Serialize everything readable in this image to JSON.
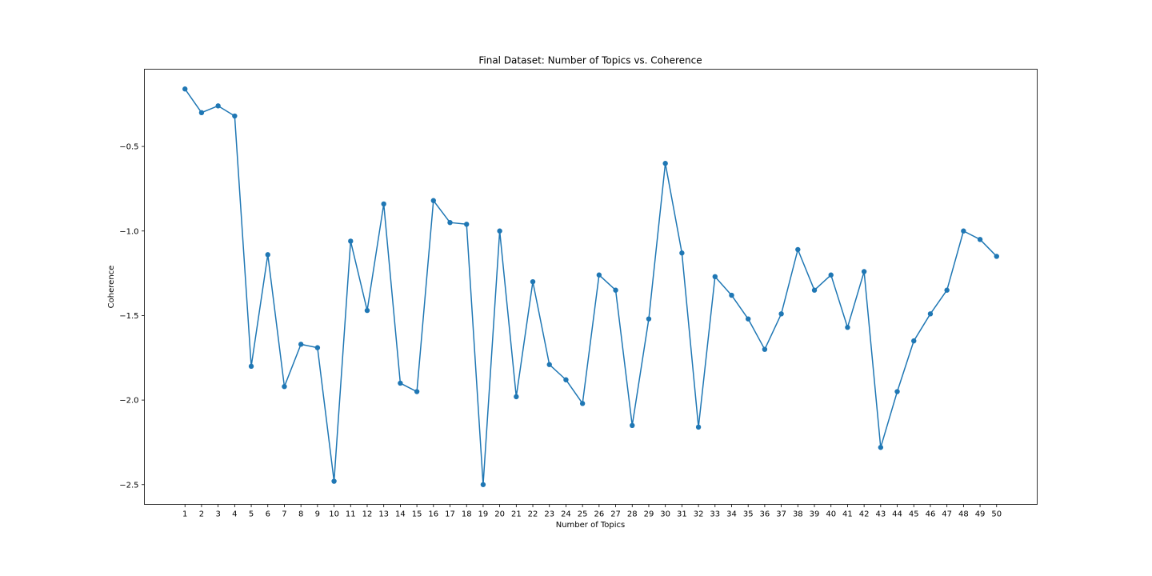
{
  "chart_data": {
    "type": "line",
    "title": "Final Dataset: Number of Topics vs. Coherence",
    "xlabel": "Number of Topics",
    "ylabel": "Coherence",
    "x": [
      1,
      2,
      3,
      4,
      5,
      6,
      7,
      8,
      9,
      10,
      11,
      12,
      13,
      14,
      15,
      16,
      17,
      18,
      19,
      20,
      21,
      22,
      23,
      24,
      25,
      26,
      27,
      28,
      29,
      30,
      31,
      32,
      33,
      34,
      35,
      36,
      37,
      38,
      39,
      40,
      41,
      42,
      43,
      44,
      45,
      46,
      47,
      48,
      49,
      50
    ],
    "x_tick_labels": [
      "1",
      "2",
      "3",
      "4",
      "5",
      "6",
      "7",
      "8",
      "9",
      "10",
      "11",
      "12",
      "13",
      "14",
      "15",
      "16",
      "17",
      "18",
      "19",
      "20",
      "21",
      "22",
      "23",
      "24",
      "25",
      "26",
      "27",
      "28",
      "29",
      "30",
      "31",
      "32",
      "33",
      "34",
      "35",
      "36",
      "37",
      "38",
      "39",
      "40",
      "41",
      "42",
      "43",
      "44",
      "45",
      "46",
      "47",
      "48",
      "49",
      "50"
    ],
    "series": [
      {
        "color": "#1f77b4",
        "marker": "circle",
        "values": [
          -0.16,
          -0.3,
          -0.26,
          -0.32,
          -1.8,
          -1.14,
          -1.92,
          -1.67,
          -1.69,
          -2.48,
          -1.06,
          -1.47,
          -0.84,
          -1.9,
          -1.95,
          -0.82,
          -0.95,
          -0.96,
          -2.5,
          -1.0,
          -1.98,
          -1.3,
          -1.79,
          -1.88,
          -2.02,
          -1.26,
          -1.35,
          -2.15,
          -1.52,
          -0.6,
          -1.13,
          -2.16,
          -1.27,
          -1.38,
          -1.52,
          -1.7,
          -1.49,
          -1.11,
          -1.35,
          -1.26,
          -1.57,
          -1.24,
          -2.28,
          -1.95,
          -1.65,
          -1.49,
          -1.35,
          -1.0,
          -1.05,
          -1.15
        ]
      }
    ],
    "y_ticks": [
      -0.5,
      -1.0,
      -1.5,
      -2.0,
      -2.5
    ],
    "y_tick_labels": [
      "−0.5",
      "−1.0",
      "−1.5",
      "−2.0",
      "−2.5"
    ],
    "xlim": [
      -1.45,
      52.45
    ],
    "ylim": [
      -2.617,
      -0.043
    ],
    "grid": false,
    "legend": false
  }
}
